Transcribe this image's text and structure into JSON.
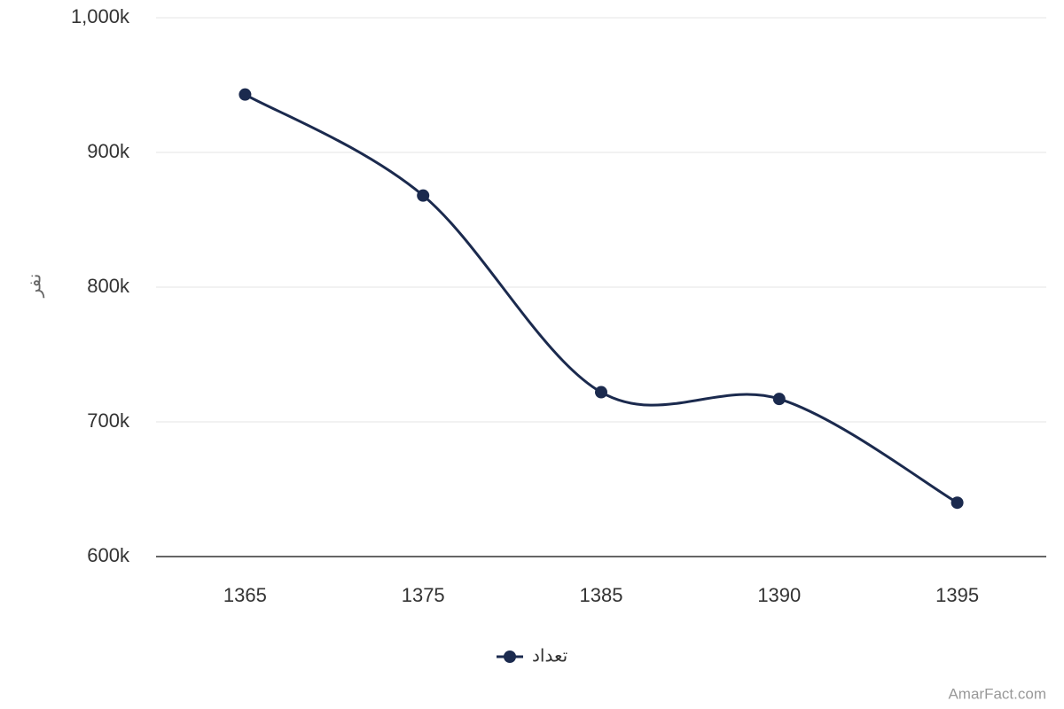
{
  "chart_data": {
    "type": "line",
    "y_axis_label": "نفر",
    "categories": [
      "1365",
      "1375",
      "1385",
      "1390",
      "1395"
    ],
    "series": [
      {
        "name": "تعداد",
        "color": "#1b2a4e",
        "values": [
          943000,
          868000,
          722000,
          717000,
          640000
        ]
      }
    ],
    "ylim": [
      600000,
      1000000
    ],
    "yticks": [
      {
        "value": 600000,
        "label": "600k"
      },
      {
        "value": 700000,
        "label": "700k"
      },
      {
        "value": 800000,
        "label": "800k"
      },
      {
        "value": 900000,
        "label": "900k"
      },
      {
        "value": 1000000,
        "label": "1,000k"
      }
    ],
    "grid": true,
    "legend": "bottom",
    "credit": "AmarFact.com"
  }
}
